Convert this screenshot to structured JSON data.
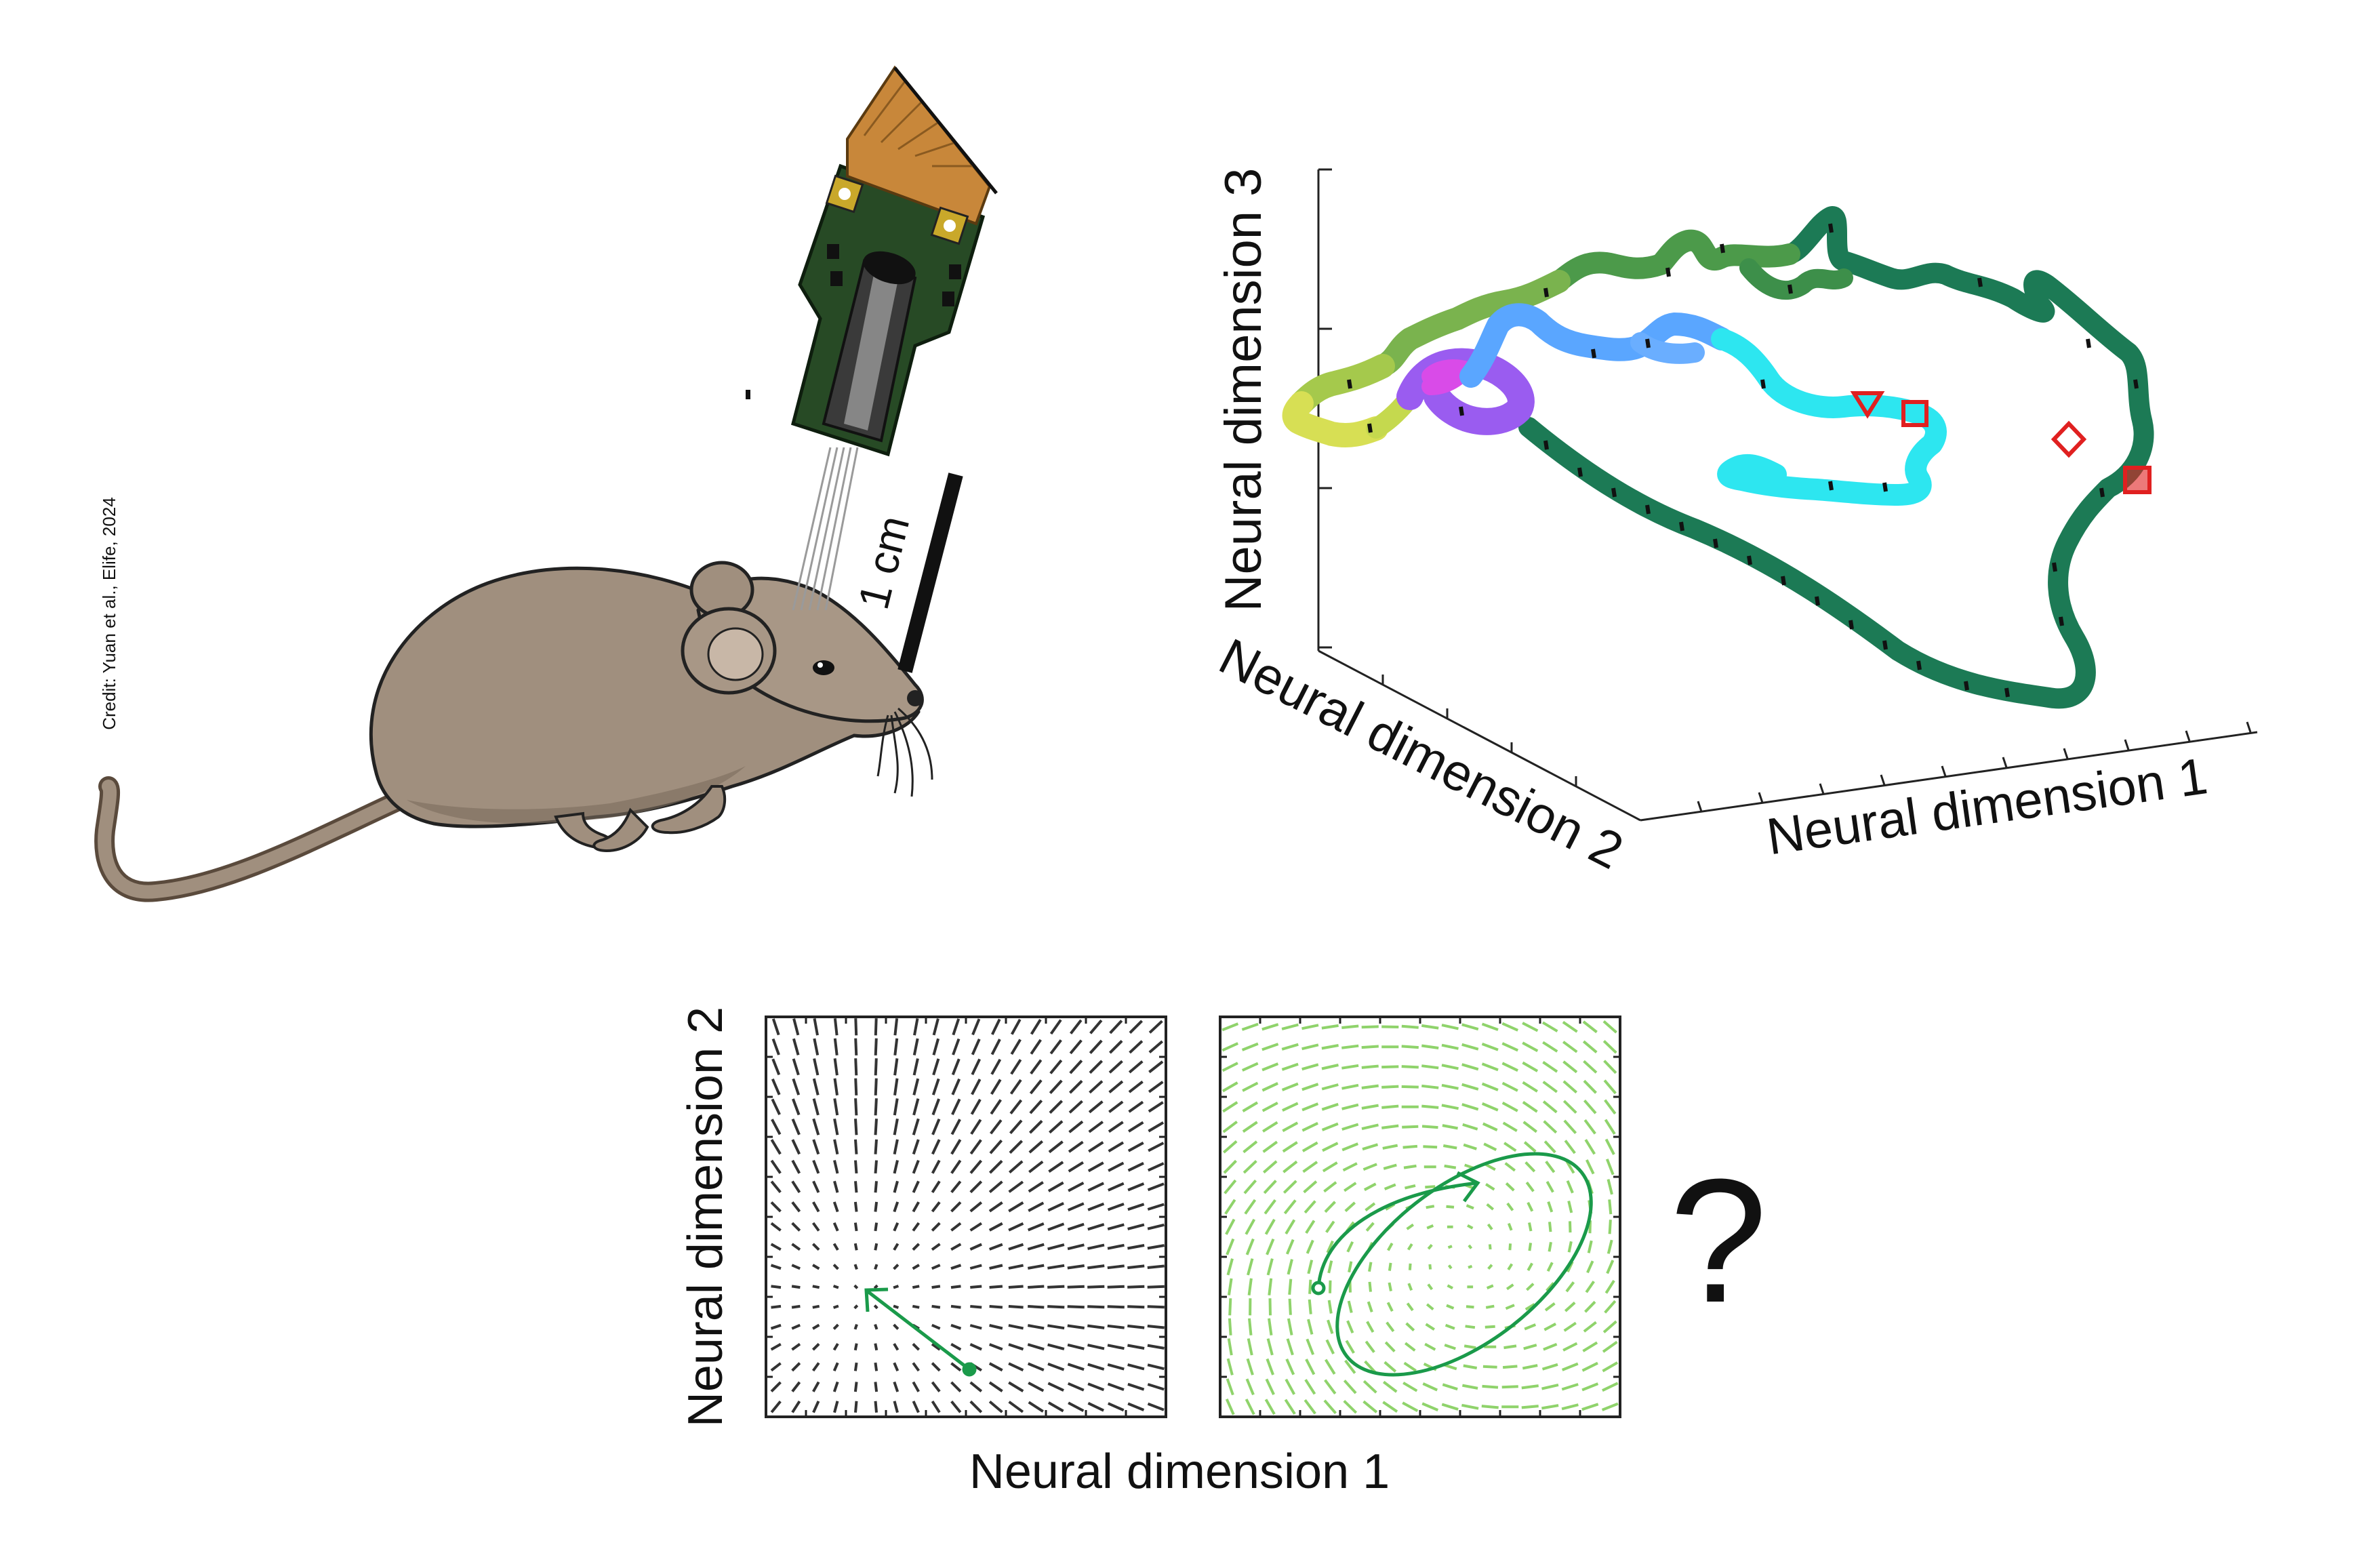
{
  "credit": "Credit: Yuan et al., Elife, 2024",
  "scale_bar_label": "1 cm",
  "trajectory_3d": {
    "axis_x_label": "Neural dimension 1",
    "axis_y_label": "Neural dimension 2",
    "axis_z_label": "Neural dimension 3"
  },
  "flow_fields": {
    "x_label": "Neural dimension 1",
    "y_label": "Neural dimension 2",
    "question_mark": "?"
  },
  "colors": {
    "mouse_fur": "#a08f7e",
    "trajectory_dark": "#1c7a55",
    "trajectory_green": "#4c9a4a",
    "trajectory_lime": "#a5c94c",
    "trajectory_yellow": "#e7e54f",
    "trajectory_purple": "#9a5cf0",
    "trajectory_magenta": "#d94be8",
    "trajectory_blue": "#5aa6ff",
    "trajectory_cyan": "#2de6f0",
    "marker_red": "#e02020",
    "field_dark": "#333333",
    "field_green": "#8fd36b",
    "accent_green": "#1a9a4a"
  }
}
